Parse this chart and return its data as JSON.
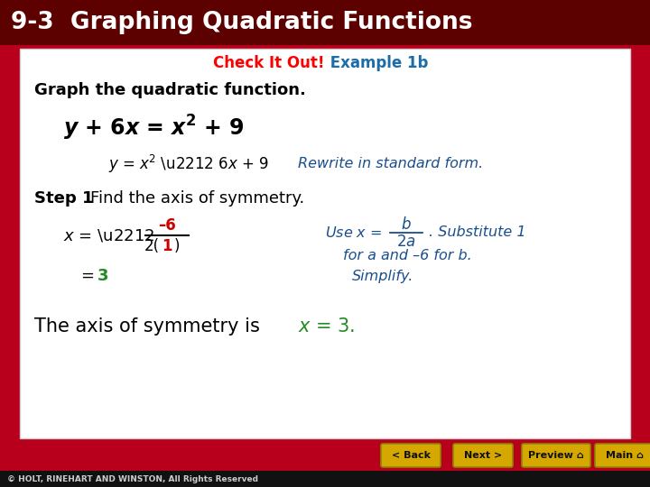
{
  "title": "9-3  Graphing Quadratic Functions",
  "title_bg": "#5C0000",
  "title_color": "#FFFFFF",
  "subtitle_check": "Check It Out!",
  "subtitle_check_color": "#FF0000",
  "subtitle_example": " Example 1b",
  "subtitle_example_color": "#1B6CA8",
  "content_bg": "#FFFFFF",
  "content_edge": "#CCCCCC",
  "main_bg": "#B8001C",
  "footer_bg": "#111111",
  "footer_text": "© HOLT, RINEHART AND WINSTON, All Rights Reserved",
  "footer_color": "#CCCCCC",
  "button_color": "#D4A800",
  "black_text": "#000000",
  "blue_text": "#1A4E8C",
  "red_text": "#CC0000",
  "green_text": "#228B22",
  "buttons": [
    "< Back",
    "Next >",
    "Preview",
    "Main"
  ]
}
